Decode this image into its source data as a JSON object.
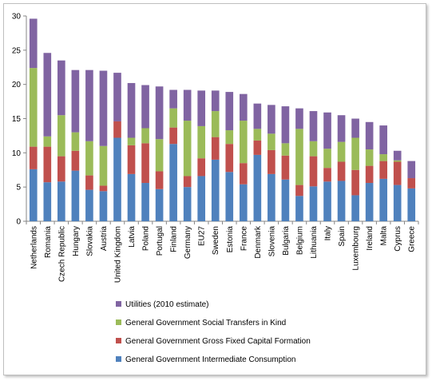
{
  "chart_data": {
    "type": "bar",
    "stacked": true,
    "title": "",
    "xlabel": "",
    "ylabel": "",
    "ylim": [
      0,
      30
    ],
    "yticks": [
      0,
      5,
      10,
      15,
      20,
      25,
      30
    ],
    "grid": false,
    "legend_position": "bottom",
    "categories": [
      "Netherlands",
      "Romania",
      "Czech Republic",
      "Hungary",
      "Slovakia",
      "Austria",
      "United Kingdom",
      "Latvia",
      "Poland",
      "Portugal",
      "Finland",
      "Germany",
      "EU27",
      "Sweden",
      "Estonia",
      "France",
      "Denmark",
      "Slovenia",
      "Bulgaria",
      "Belgium",
      "Lithuania",
      "Italy",
      "Spain",
      "Luxembourg",
      "Ireland",
      "Malta",
      "Cyprus",
      "Greece"
    ],
    "series": [
      {
        "name": "General Government Intermediate Consumption",
        "color": "#4f81bd",
        "values": [
          7.6,
          5.7,
          5.8,
          7.4,
          4.6,
          4.4,
          12.2,
          6.9,
          5.6,
          4.7,
          11.3,
          5.0,
          6.6,
          9.0,
          7.2,
          5.4,
          9.7,
          6.9,
          6.1,
          3.7,
          5.1,
          5.8,
          5.9,
          3.8,
          5.6,
          6.2,
          5.3,
          4.8
        ]
      },
      {
        "name": "General Government Gross Fixed Capital Formation",
        "color": "#c0504d",
        "values": [
          3.3,
          5.2,
          3.7,
          2.9,
          2.1,
          0.8,
          2.4,
          4.2,
          5.8,
          2.6,
          2.4,
          1.6,
          2.6,
          3.3,
          4.1,
          3.1,
          2.1,
          3.5,
          3.5,
          1.6,
          4.4,
          2.0,
          2.8,
          3.7,
          2.5,
          2.6,
          3.4,
          1.5
        ]
      },
      {
        "name": "General Government Social Transfers in Kind",
        "color": "#9bbb59",
        "values": [
          11.5,
          1.5,
          6.0,
          2.7,
          5.0,
          5.8,
          0.0,
          1.1,
          2.2,
          4.7,
          2.8,
          8.1,
          4.7,
          3.8,
          2.0,
          6.2,
          1.7,
          2.4,
          1.8,
          8.2,
          2.2,
          2.8,
          2.9,
          4.7,
          2.4,
          1.0,
          0.2,
          0.0
        ]
      },
      {
        "name": "Utilities (2010 estimate)",
        "color": "#8064a2",
        "values": [
          7.2,
          12.2,
          8.0,
          9.1,
          10.4,
          11.0,
          7.1,
          8.0,
          6.3,
          7.7,
          2.7,
          4.5,
          5.2,
          3.0,
          5.6,
          3.9,
          3.7,
          4.2,
          5.4,
          3.0,
          4.4,
          5.3,
          3.9,
          2.8,
          4.0,
          4.2,
          1.4,
          2.5
        ]
      }
    ]
  }
}
